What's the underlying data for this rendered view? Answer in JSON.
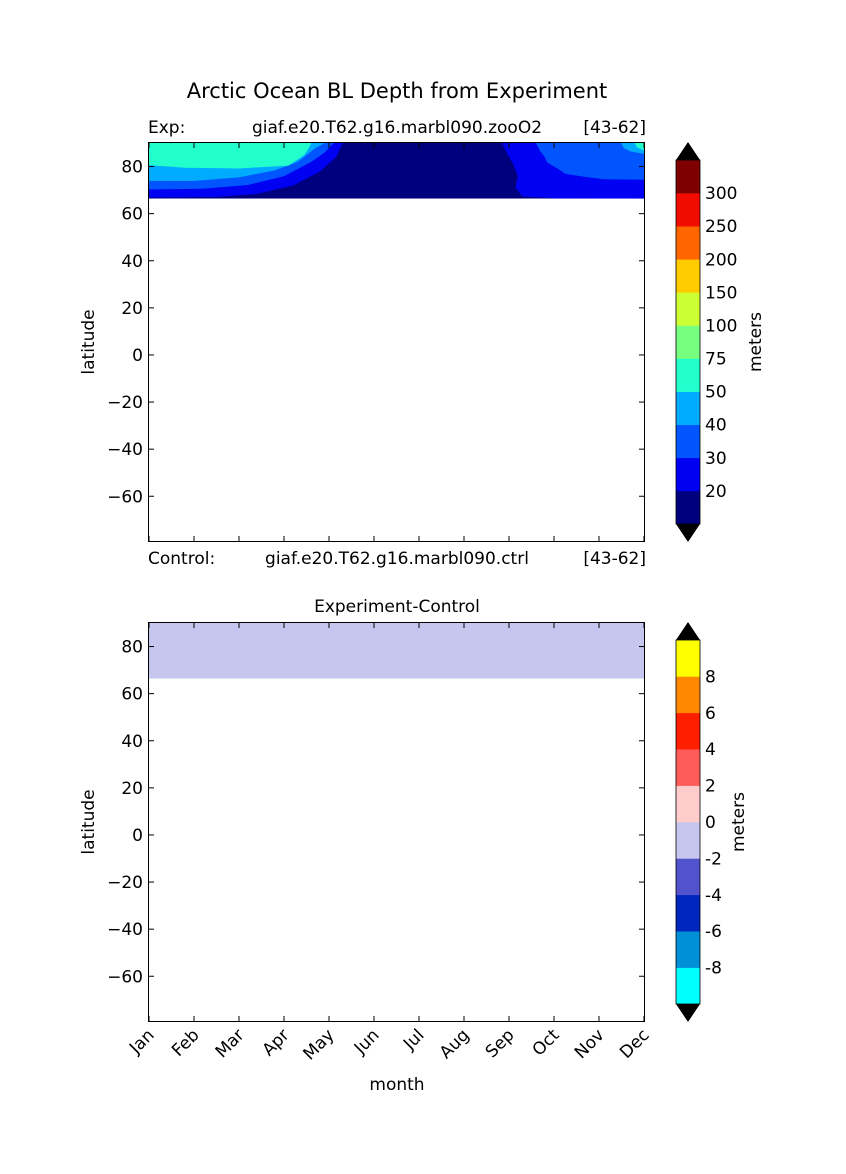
{
  "figure": {
    "title": "Arctic Ocean BL Depth from Experiment",
    "exp_label": "Exp:",
    "exp_case": "giaf.e20.T62.g16.marbl090.zooO2",
    "exp_years": "[43-62]",
    "ctrl_label": "Control:",
    "ctrl_case": "giaf.e20.T62.g16.marbl090.ctrl",
    "ctrl_years": "[43-62]"
  },
  "chart_data": [
    {
      "type": "heatmap",
      "title": "",
      "xlabel": "",
      "ylabel": "latitude",
      "x_categories": [
        "Jan",
        "Feb",
        "Mar",
        "Apr",
        "May",
        "Jun",
        "Jul",
        "Aug",
        "Sep",
        "Oct",
        "Nov",
        "Dec"
      ],
      "xlim": [
        0,
        11
      ],
      "ylim": [
        -79,
        90
      ],
      "y_ticks": [
        80,
        60,
        40,
        20,
        0,
        -20,
        -40,
        -60
      ],
      "data_lat_range": [
        66.5,
        90
      ],
      "colorbar": {
        "label": "meters",
        "levels": [
          20,
          30,
          40,
          50,
          75,
          100,
          150,
          200,
          250,
          300
        ],
        "colors": [
          "#00007f",
          "#0000f2",
          "#0055ff",
          "#00aaff",
          "#22ffcc",
          "#77ff7f",
          "#ccff33",
          "#ffcc00",
          "#ff6600",
          "#f20c00",
          "#7f0000"
        ],
        "extend": "both",
        "extend_color": "#000000"
      },
      "layers": [
        {
          "level_index": 0,
          "color": "#00007f",
          "polygon": [
            [
              0,
              66.5
            ],
            [
              11,
              66.5
            ],
            [
              11,
              90
            ],
            [
              0,
              90
            ]
          ]
        },
        {
          "level_index": 1,
          "color": "#0000f2",
          "polygon": [
            [
              0,
              90
            ],
            [
              0,
              66.9
            ],
            [
              1.5,
              67.2
            ],
            [
              2.4,
              68.5
            ],
            [
              3.2,
              72
            ],
            [
              3.8,
              78
            ],
            [
              4.15,
              84
            ],
            [
              4.3,
              90
            ]
          ]
        },
        {
          "level_index": 1,
          "color": "#0000f2",
          "polygon": [
            [
              11,
              90
            ],
            [
              11,
              66.5
            ],
            [
              9,
              66.6
            ],
            [
              8.3,
              67.4
            ],
            [
              8.15,
              71
            ],
            [
              8.2,
              76
            ],
            [
              8.1,
              81
            ],
            [
              7.95,
              86
            ],
            [
              7.85,
              90
            ]
          ]
        },
        {
          "level_index": 2,
          "color": "#0055ff",
          "polygon": [
            [
              0,
              90
            ],
            [
              0,
              70.4
            ],
            [
              1.2,
              70.7
            ],
            [
              2.2,
              72.3
            ],
            [
              3,
              76
            ],
            [
              3.6,
              82
            ],
            [
              3.9,
              86
            ],
            [
              4.1,
              90
            ]
          ]
        },
        {
          "level_index": 2,
          "color": "#0055ff",
          "polygon": [
            [
              11,
              90
            ],
            [
              11,
              74.5
            ],
            [
              10.1,
              74.7
            ],
            [
              9.65,
              75.8
            ],
            [
              9.25,
              77
            ],
            [
              9.1,
              79
            ],
            [
              8.85,
              81.8
            ],
            [
              8.8,
              84
            ],
            [
              8.7,
              86.5
            ],
            [
              8.6,
              90
            ]
          ]
        },
        {
          "level_index": 3,
          "color": "#00aaff",
          "polygon": [
            [
              0,
              90
            ],
            [
              0,
              74
            ],
            [
              1,
              74
            ],
            [
              2,
              75.5
            ],
            [
              2.8,
              78.5
            ],
            [
              3.3,
              82
            ],
            [
              3.7,
              88
            ],
            [
              3.9,
              90
            ]
          ]
        },
        {
          "level_index": 3,
          "color": "#00aaff",
          "polygon": [
            [
              11,
              90
            ],
            [
              11,
              85.5
            ],
            [
              10.7,
              86.5
            ],
            [
              10.55,
              88
            ],
            [
              10.5,
              90
            ]
          ]
        },
        {
          "level_index": 4,
          "color": "#22ffcc",
          "polygon": [
            [
              0,
              90
            ],
            [
              0,
              80.7
            ],
            [
              0.8,
              79.6
            ],
            [
              2,
              79.3
            ],
            [
              3.1,
              80.5
            ],
            [
              3.45,
              85
            ],
            [
              3.55,
              88
            ],
            [
              3.6,
              90
            ]
          ]
        },
        {
          "level_index": 4,
          "color": "#22ffcc",
          "polygon": [
            [
              11,
              90
            ],
            [
              11,
              87
            ],
            [
              10.85,
              88.2
            ],
            [
              10.8,
              90
            ]
          ]
        }
      ]
    },
    {
      "type": "heatmap",
      "title": "Experiment-Control",
      "xlabel": "month",
      "ylabel": "latitude",
      "x_categories": [
        "Jan",
        "Feb",
        "Mar",
        "Apr",
        "May",
        "Jun",
        "Jul",
        "Aug",
        "Sep",
        "Oct",
        "Nov",
        "Dec"
      ],
      "xlim": [
        0,
        11
      ],
      "ylim": [
        -79,
        90
      ],
      "y_ticks": [
        80,
        60,
        40,
        20,
        0,
        -20,
        -40,
        -60
      ],
      "data_lat_range": [
        66.5,
        90
      ],
      "colorbar": {
        "label": "meters",
        "levels": [
          -8,
          -6,
          -4,
          -2,
          0,
          2,
          4,
          6,
          8
        ],
        "colors": [
          "#00ffff",
          "#0090d8",
          "#0026c0",
          "#5252cc",
          "#c6c6ee",
          "#ffcccc",
          "#ff5b5b",
          "#ff1e00",
          "#ff8800",
          "#ffff00"
        ],
        "extend": "both",
        "extend_color": "#000000"
      },
      "layers": [
        {
          "level_index": 4,
          "color": "#c6c6ee",
          "polygon": [
            [
              0,
              66.5
            ],
            [
              11,
              66.5
            ],
            [
              11,
              90
            ],
            [
              0,
              90
            ]
          ]
        }
      ]
    }
  ]
}
